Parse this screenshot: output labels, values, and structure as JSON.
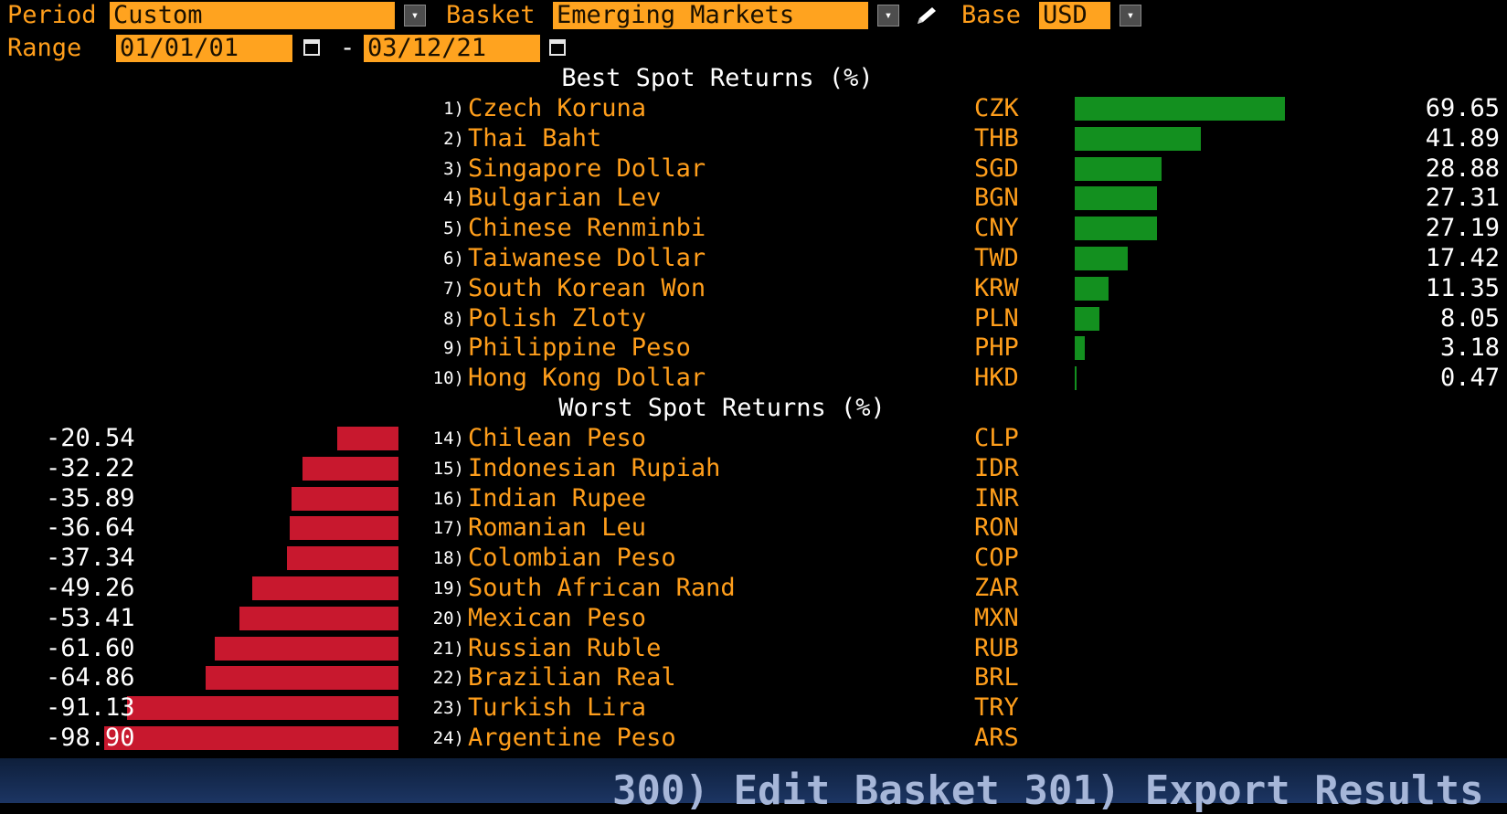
{
  "controls": {
    "period_label": "Period",
    "period_value": "Custom",
    "basket_label": "Basket",
    "basket_value": "Emerging Markets",
    "base_label": "Base",
    "base_value": "USD",
    "range_label": "Range",
    "range_start": "01/01/01",
    "range_separator": "-",
    "range_end": "03/12/21"
  },
  "icons": {
    "dropdown": "chevron-down-icon",
    "calendar": "calendar-icon",
    "edit": "pencil-icon"
  },
  "best": {
    "title": "Best Spot Returns (%)",
    "items": [
      {
        "rank": "1)",
        "name": "Czech Koruna",
        "code": "CZK",
        "value": "69.65"
      },
      {
        "rank": "2)",
        "name": "Thai Baht",
        "code": "THB",
        "value": "41.89"
      },
      {
        "rank": "3)",
        "name": "Singapore Dollar",
        "code": "SGD",
        "value": "28.88"
      },
      {
        "rank": "4)",
        "name": "Bulgarian Lev",
        "code": "BGN",
        "value": "27.31"
      },
      {
        "rank": "5)",
        "name": "Chinese Renminbi",
        "code": "CNY",
        "value": "27.19"
      },
      {
        "rank": "6)",
        "name": "Taiwanese Dollar",
        "code": "TWD",
        "value": "17.42"
      },
      {
        "rank": "7)",
        "name": "South Korean Won",
        "code": "KRW",
        "value": "11.35"
      },
      {
        "rank": "8)",
        "name": "Polish Zloty",
        "code": "PLN",
        "value": "8.05"
      },
      {
        "rank": "9)",
        "name": "Philippine Peso",
        "code": "PHP",
        "value": "3.18"
      },
      {
        "rank": "10)",
        "name": "Hong Kong Dollar",
        "code": "HKD",
        "value": "0.47"
      }
    ]
  },
  "worst": {
    "title": "Worst Spot Returns (%)",
    "items": [
      {
        "rank": "14)",
        "name": "Chilean Peso",
        "code": "CLP",
        "value": "-20.54"
      },
      {
        "rank": "15)",
        "name": "Indonesian Rupiah",
        "code": "IDR",
        "value": "-32.22"
      },
      {
        "rank": "16)",
        "name": "Indian Rupee",
        "code": "INR",
        "value": "-35.89"
      },
      {
        "rank": "17)",
        "name": "Romanian Leu",
        "code": "RON",
        "value": "-36.64"
      },
      {
        "rank": "18)",
        "name": "Colombian Peso",
        "code": "COP",
        "value": "-37.34"
      },
      {
        "rank": "19)",
        "name": "South African Rand",
        "code": "ZAR",
        "value": "-49.26"
      },
      {
        "rank": "20)",
        "name": "Mexican Peso",
        "code": "MXN",
        "value": "-53.41"
      },
      {
        "rank": "21)",
        "name": "Russian Ruble",
        "code": "RUB",
        "value": "-61.60"
      },
      {
        "rank": "22)",
        "name": "Brazilian Real",
        "code": "BRL",
        "value": "-64.86"
      },
      {
        "rank": "23)",
        "name": "Turkish Lira",
        "code": "TRY",
        "value": "-91.13"
      },
      {
        "rank": "24)",
        "name": "Argentine Peso",
        "code": "ARS",
        "value": "-98.90"
      }
    ]
  },
  "footer": {
    "text": "300) Edit Basket  301) Export Results"
  },
  "colors": {
    "accent": "#ff9e1b",
    "field": "#ffa31f",
    "positive_bar": "#13901f",
    "negative_bar": "#c8182e",
    "background": "#000000"
  }
}
